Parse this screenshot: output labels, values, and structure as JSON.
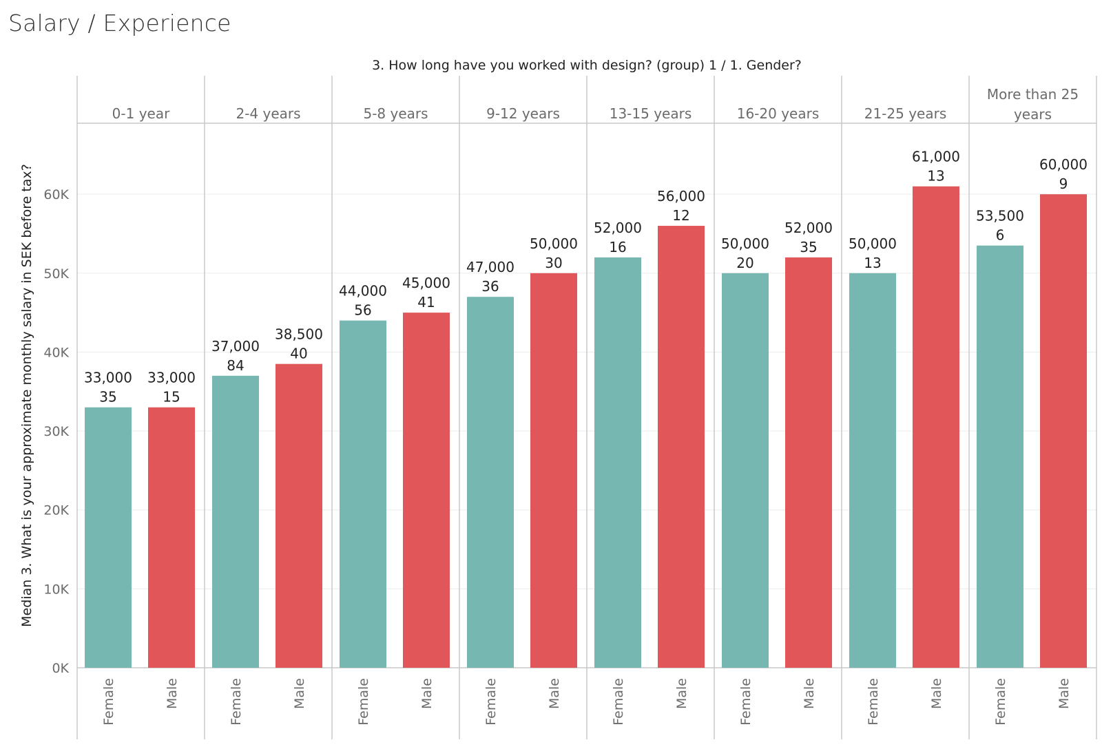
{
  "page": {
    "title": "Salary / Experience"
  },
  "chart_data": {
    "type": "bar",
    "header": "3. How long have you worked with design? (group) 1  /  1. Gender?",
    "ylabel": "Median 3. What is your approximate monthly salary in SEK before tax?",
    "ylim": [
      0,
      69000
    ],
    "yticks": [
      0,
      10000,
      20000,
      30000,
      40000,
      50000,
      60000
    ],
    "ytick_labels": [
      "0K",
      "10K",
      "20K",
      "30K",
      "40K",
      "50K",
      "60K"
    ],
    "grid": true,
    "colors": {
      "Female": "#76b7b2",
      "Male": "#e15759"
    },
    "subcategories": [
      "Female",
      "Male"
    ],
    "groups": [
      {
        "label": [
          "0-1 year"
        ],
        "values": [
          33000,
          33000
        ],
        "value_labels": [
          "33,000",
          "33,000"
        ],
        "counts": [
          "35",
          "15"
        ]
      },
      {
        "label": [
          "2-4 years"
        ],
        "values": [
          37000,
          38500
        ],
        "value_labels": [
          "37,000",
          "38,500"
        ],
        "counts": [
          "84",
          "40"
        ]
      },
      {
        "label": [
          "5-8 years"
        ],
        "values": [
          44000,
          45000
        ],
        "value_labels": [
          "44,000",
          "45,000"
        ],
        "counts": [
          "56",
          "41"
        ]
      },
      {
        "label": [
          "9-12 years"
        ],
        "values": [
          47000,
          50000
        ],
        "value_labels": [
          "47,000",
          "50,000"
        ],
        "counts": [
          "36",
          "30"
        ]
      },
      {
        "label": [
          "13-15 years"
        ],
        "values": [
          52000,
          56000
        ],
        "value_labels": [
          "52,000",
          "56,000"
        ],
        "counts": [
          "16",
          "12"
        ]
      },
      {
        "label": [
          "16-20 years"
        ],
        "values": [
          50000,
          52000
        ],
        "value_labels": [
          "50,000",
          "52,000"
        ],
        "counts": [
          "20",
          "35"
        ]
      },
      {
        "label": [
          "21-25 years"
        ],
        "values": [
          50000,
          61000
        ],
        "value_labels": [
          "50,000",
          "61,000"
        ],
        "counts": [
          "13",
          "13"
        ]
      },
      {
        "label": [
          "More than 25",
          "years"
        ],
        "values": [
          53500,
          60000
        ],
        "value_labels": [
          "53,500",
          "60,000"
        ],
        "counts": [
          "6",
          "9"
        ]
      }
    ]
  }
}
